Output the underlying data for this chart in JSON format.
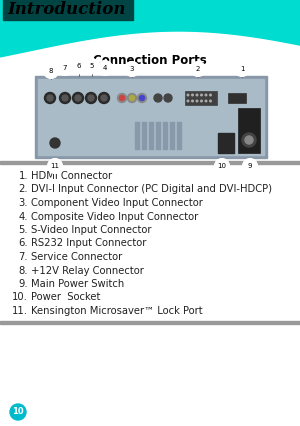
{
  "title": "Introduction",
  "subtitle": "Connection Ports",
  "bg_top_color": "#00DDD0",
  "title_bg_color": "#1A6060",
  "items": [
    "HDMI Connector",
    "DVI-I Input Connector (PC Digital and DVI-HDCP)",
    "Component Video Input Connector",
    "Composite Video Input Connector",
    "S-Video Input Connector",
    "RS232 Input Connector",
    "Service Connector",
    "+12V Relay Connector",
    "Main Power Switch",
    "Power  Socket",
    "Kensington Microsaver™ Lock Port"
  ],
  "separator_color": "#999999",
  "body_bg": "#ffffff",
  "text_color": "#222222",
  "font_size_items": 7.2,
  "font_size_title": 12,
  "font_size_subtitle": 8.5,
  "page_num": "10"
}
